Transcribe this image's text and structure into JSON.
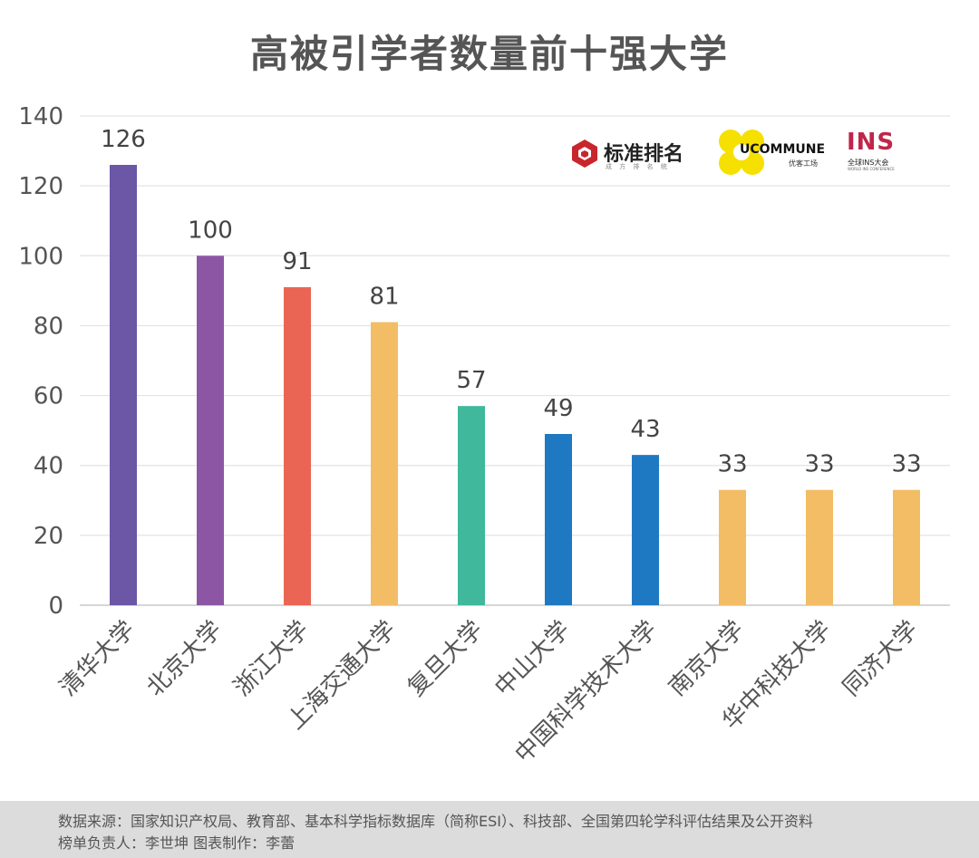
{
  "title": "高被引学者数量前十强大学",
  "chart_data": {
    "type": "bar",
    "title": "高被引学者数量前十强大学",
    "categories": [
      "清华大学",
      "北京大学",
      "浙江大学",
      "上海交通大学",
      "复旦大学",
      "中山大学",
      "中国科学技术大学",
      "南京大学",
      "华中科技大学",
      "同济大学"
    ],
    "values": [
      126,
      100,
      91,
      81,
      57,
      49,
      43,
      33,
      33,
      33
    ],
    "colors": [
      "#6b57a6",
      "#8d56a4",
      "#ea6554",
      "#f2bd65",
      "#3fb89b",
      "#1f78c2",
      "#1f78c2",
      "#f2bd65",
      "#f2bd65",
      "#f2bd65"
    ],
    "yticks": [
      0,
      20,
      40,
      60,
      80,
      100,
      120,
      140
    ],
    "ylim": [
      0,
      140
    ],
    "grid": true,
    "xlabel": "",
    "ylabel": ""
  },
  "logos": {
    "biaozhun": {
      "name": "标准排名",
      "sub": "成 方 排 名 统"
    },
    "ucommune": {
      "name": "UCOMMUNE",
      "sub": "优客工场"
    },
    "ins": {
      "name": "INS",
      "sub": "全球INS大会",
      "sub2": "WORLD INS CONFERENCE"
    }
  },
  "footer": {
    "source": "数据来源：国家知识产权局、教育部、基本科学指标数据库（简称ESI）、科技部、全国第四轮学科评估结果及公开资料",
    "credit": "榜单负责人：李世坤   图表制作：李蕾"
  }
}
